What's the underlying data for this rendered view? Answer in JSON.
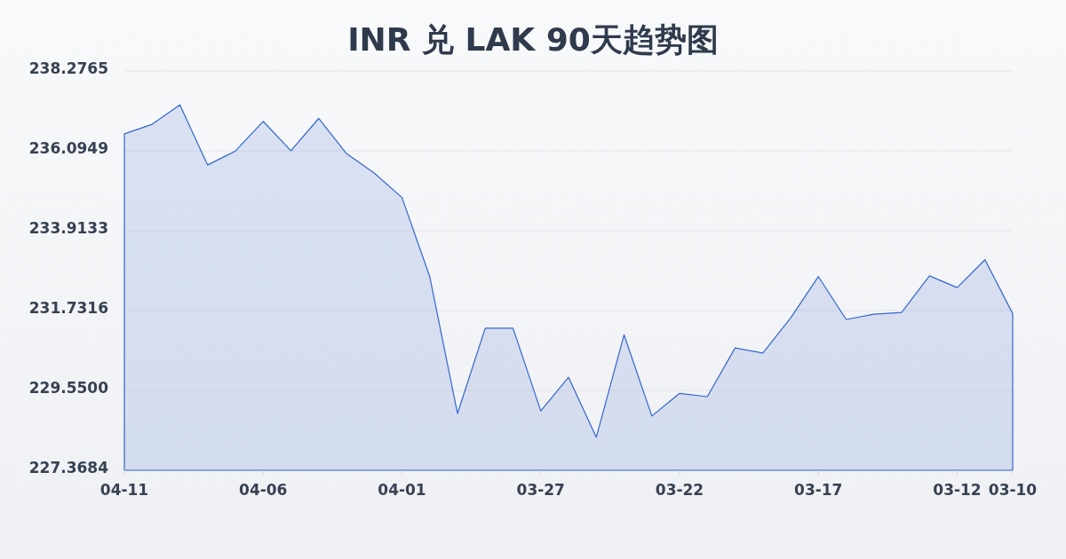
{
  "chart_data": {
    "type": "area",
    "title": "INR 兑 LAK 90天趋势图",
    "categories": [
      "04-11",
      null,
      null,
      null,
      null,
      "04-06",
      null,
      null,
      null,
      null,
      "04-01",
      null,
      null,
      null,
      null,
      "03-27",
      null,
      null,
      null,
      null,
      "03-22",
      null,
      null,
      null,
      null,
      "03-17",
      null,
      null,
      null,
      null,
      "03-12",
      null,
      "03-10"
    ],
    "series": [
      {
        "color": "#3366cc",
        "values": [
          236.56,
          236.82,
          237.35,
          235.71,
          236.09,
          236.9,
          236.1,
          236.98,
          236.02,
          235.49,
          234.82,
          232.66,
          228.92,
          231.25,
          231.25,
          228.99,
          229.91,
          228.27,
          231.07,
          228.85,
          229.47,
          229.38,
          230.71,
          230.57,
          231.53,
          232.66,
          231.49,
          231.63,
          231.68,
          232.68,
          232.36,
          233.12,
          231.65
        ]
      }
    ],
    "ylim": [
      227.3684,
      238.2765
    ],
    "yticks": [
      227.3684,
      {
        "value": 229.55,
        "label": "229.5500"
      },
      231.7316,
      233.9133,
      236.0949,
      238.2765
    ],
    "grid": "y"
  }
}
